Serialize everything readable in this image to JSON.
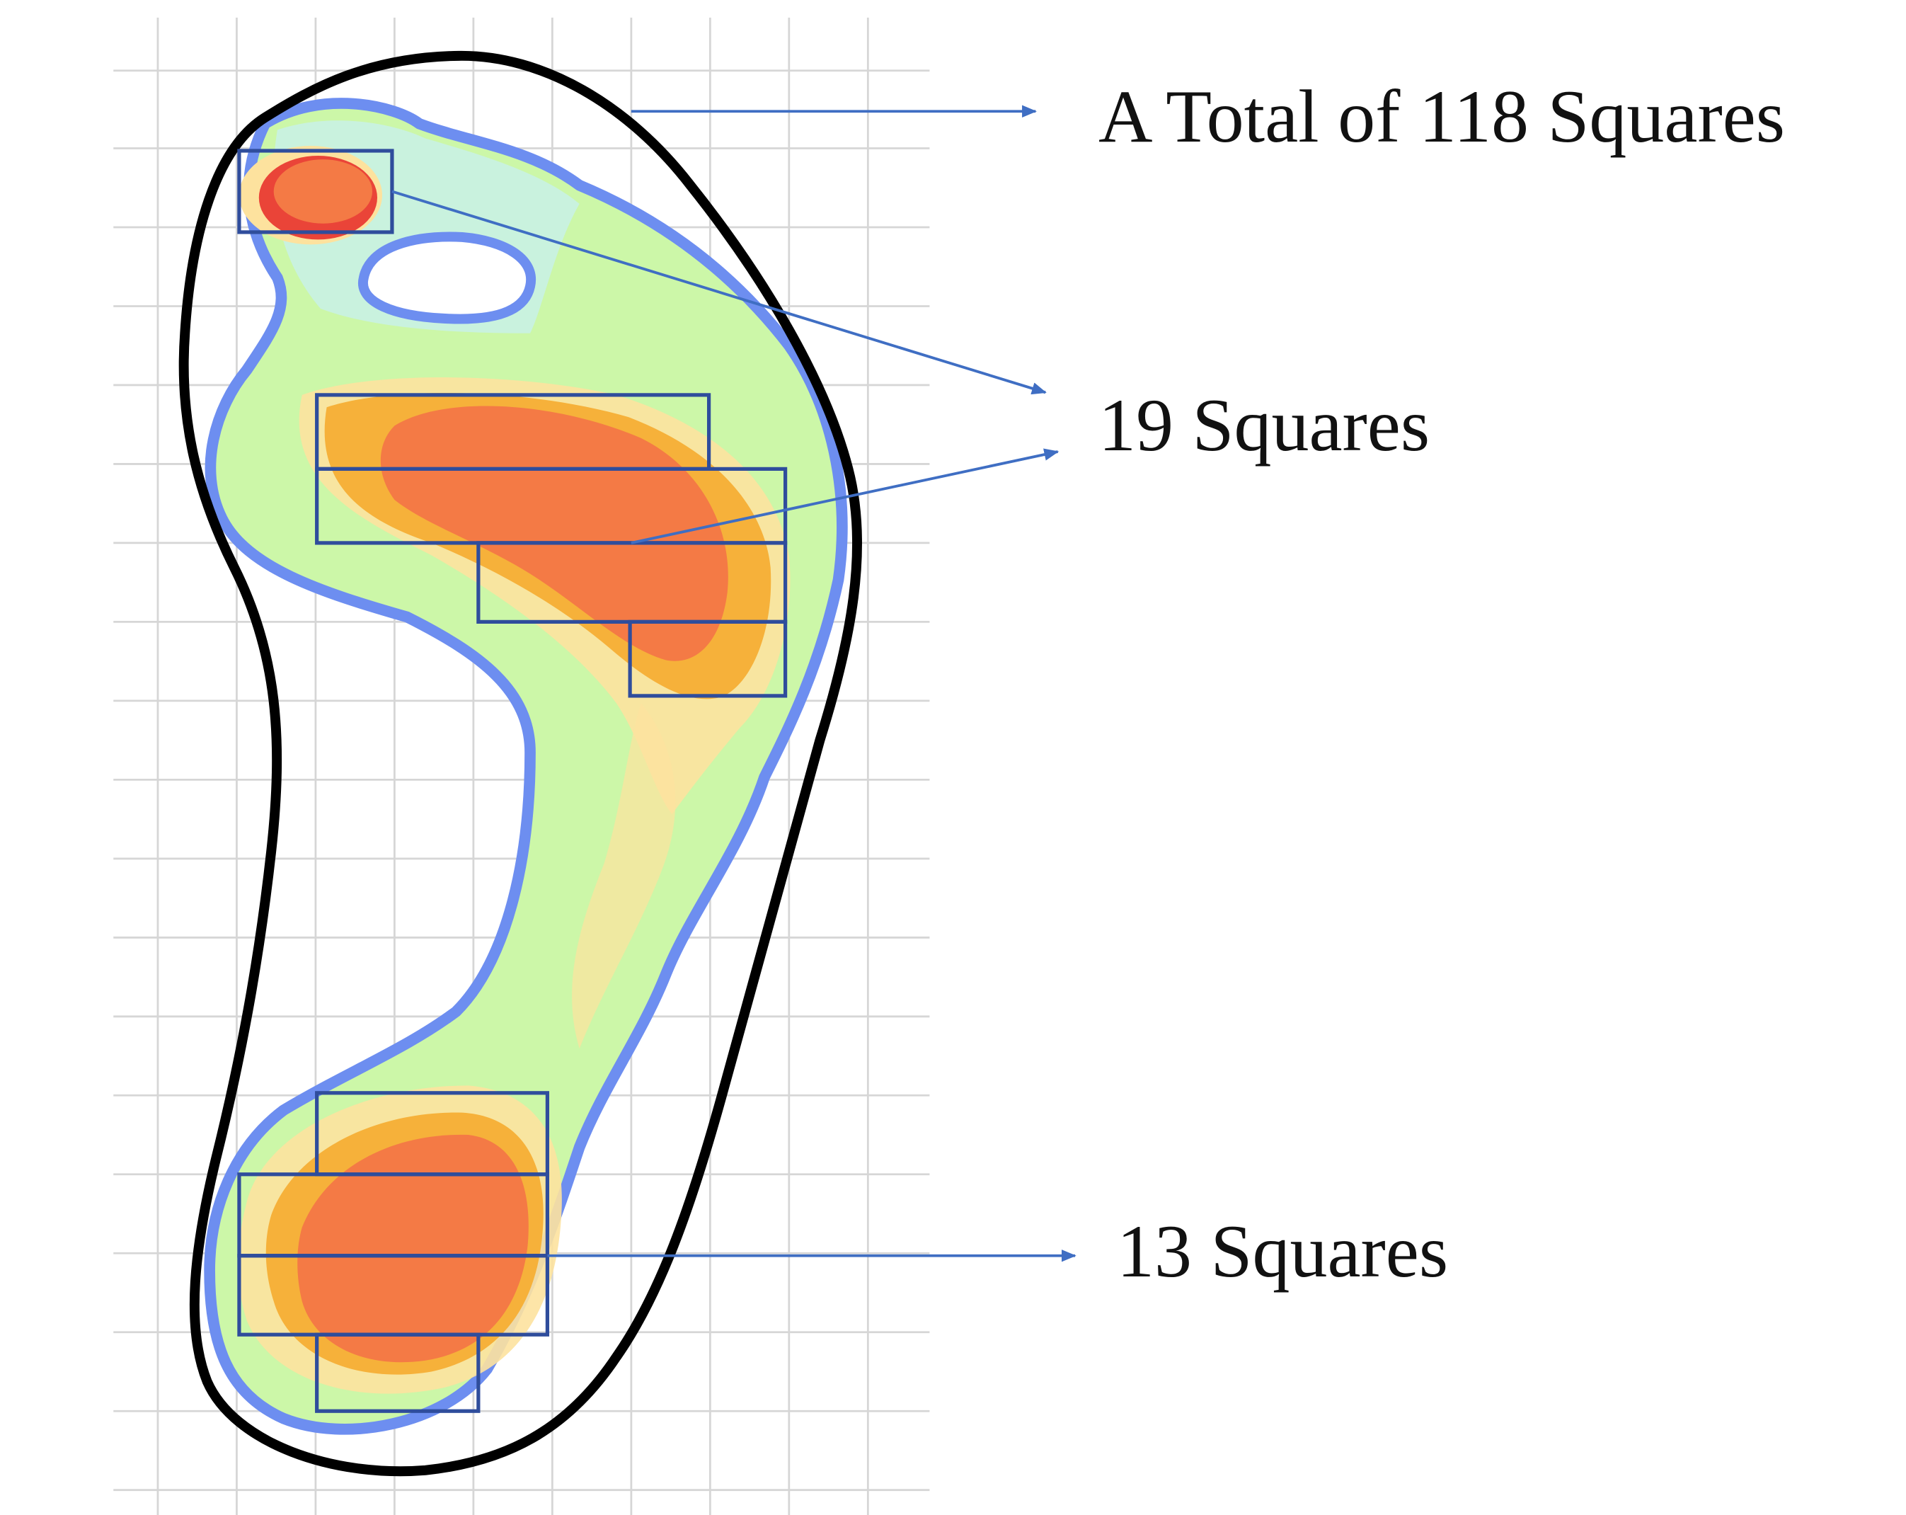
{
  "labels": {
    "total": "A Total of 118 Squares",
    "forefoot": "19 Squares",
    "heel": "13 Squares"
  },
  "colors": {
    "grid": "#d4d4d4",
    "outline": "#000000",
    "contour_blue": "#6d8ef0",
    "light_blue": "#c8f0fb",
    "green": "#ccf7a8",
    "pale_orange": "#fde29e",
    "orange": "#f6b13a",
    "red": "#f47a45",
    "deep_red": "#ea4438",
    "box_stroke": "#2f4d9c",
    "arrow": "#3f6ec3"
  }
}
